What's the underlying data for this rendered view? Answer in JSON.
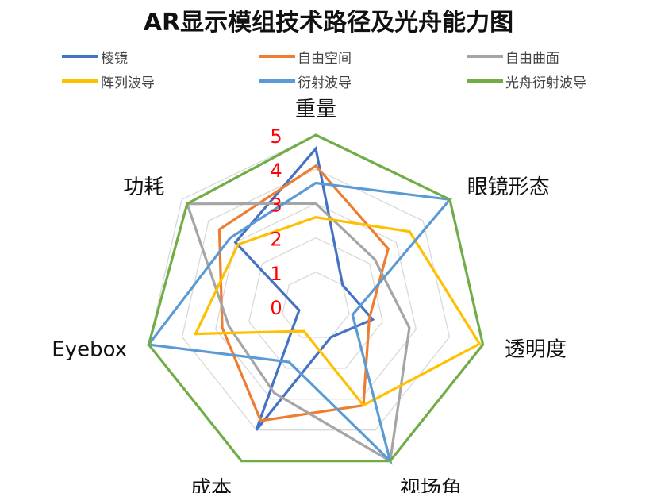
{
  "chart_data": {
    "type": "radar",
    "title": "AR显示模组技术路径及光舟能力图",
    "axes": [
      "重量",
      "眼镜形态",
      "透明度",
      "视场角",
      "成本",
      "Eyebox",
      "功耗"
    ],
    "rlim": [
      0,
      5
    ],
    "ticks": [
      "0",
      "1",
      "2",
      "3",
      "4",
      "5"
    ],
    "legend_position": "top",
    "grid": true,
    "series": [
      {
        "name": "棱镜",
        "color": "#4472C4",
        "values": [
          4.6,
          1.0,
          1.7,
          1.0,
          4.0,
          0.5,
          3.0
        ]
      },
      {
        "name": "自由空间",
        "color": "#ED7D31",
        "values": [
          4.1,
          2.7,
          1.6,
          3.2,
          3.7,
          2.8,
          3.6
        ]
      },
      {
        "name": "自由曲面",
        "color": "#A5A5A5",
        "values": [
          3.0,
          2.2,
          2.8,
          5.0,
          2.8,
          2.6,
          4.8
        ]
      },
      {
        "name": "阵列波导",
        "color": "#FFC000",
        "values": [
          2.6,
          3.5,
          4.9,
          3.2,
          0.8,
          3.6,
          2.9
        ]
      },
      {
        "name": "衍射波导",
        "color": "#5B9BD5",
        "values": [
          3.6,
          5.0,
          1.1,
          5.0,
          1.8,
          5.0,
          3.2
        ]
      },
      {
        "name": "光舟衍射波导",
        "color": "#70AD47",
        "values": [
          5.0,
          5.0,
          5.0,
          5.0,
          5.0,
          5.0,
          4.8
        ]
      }
    ]
  }
}
